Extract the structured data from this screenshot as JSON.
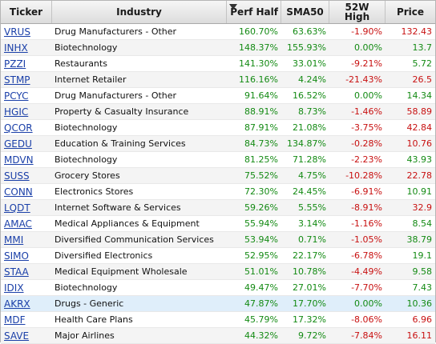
{
  "columns": {
    "ticker": "Ticker",
    "industry": "Industry",
    "perf_half": "Perf Half",
    "sma50": "SMA50",
    "high_line1": "52W",
    "high_line2": "High",
    "price": "Price"
  },
  "sort": {
    "column": "perf_half",
    "direction": "descending",
    "icon": "sort-descending-triangle"
  },
  "colors": {
    "positive": "#138a13",
    "negative": "#c81010",
    "link": "#1a3fa8",
    "highlight_row": "#dfeefa"
  },
  "highlighted_ticker": "AKRX",
  "rows": [
    {
      "ticker": "VRUS",
      "industry": "Drug Manufacturers - Other",
      "perf_half": "160.70%",
      "sma50": "63.63%",
      "high": "-1.90%",
      "price": "132.43",
      "price_dir": "neg"
    },
    {
      "ticker": "INHX",
      "industry": "Biotechnology",
      "perf_half": "148.37%",
      "sma50": "155.93%",
      "high": "0.00%",
      "price": "13.7",
      "price_dir": "pos"
    },
    {
      "ticker": "PZZI",
      "industry": "Restaurants",
      "perf_half": "141.30%",
      "sma50": "33.01%",
      "high": "-9.21%",
      "price": "5.72",
      "price_dir": "pos"
    },
    {
      "ticker": "STMP",
      "industry": "Internet Retailer",
      "perf_half": "116.16%",
      "sma50": "4.24%",
      "high": "-21.43%",
      "price": "26.5",
      "price_dir": "neg"
    },
    {
      "ticker": "PCYC",
      "industry": "Drug Manufacturers - Other",
      "perf_half": "91.64%",
      "sma50": "16.52%",
      "high": "0.00%",
      "price": "14.34",
      "price_dir": "pos"
    },
    {
      "ticker": "HGIC",
      "industry": "Property & Casualty Insurance",
      "perf_half": "88.91%",
      "sma50": "8.73%",
      "high": "-1.46%",
      "price": "58.89",
      "price_dir": "neg"
    },
    {
      "ticker": "QCOR",
      "industry": "Biotechnology",
      "perf_half": "87.91%",
      "sma50": "21.08%",
      "high": "-3.75%",
      "price": "42.84",
      "price_dir": "neg"
    },
    {
      "ticker": "GEDU",
      "industry": "Education & Training Services",
      "perf_half": "84.73%",
      "sma50": "134.87%",
      "high": "-0.28%",
      "price": "10.76",
      "price_dir": "neg"
    },
    {
      "ticker": "MDVN",
      "industry": "Biotechnology",
      "perf_half": "81.25%",
      "sma50": "71.28%",
      "high": "-2.23%",
      "price": "43.93",
      "price_dir": "pos"
    },
    {
      "ticker": "SUSS",
      "industry": "Grocery Stores",
      "perf_half": "75.52%",
      "sma50": "4.75%",
      "high": "-10.28%",
      "price": "22.78",
      "price_dir": "neg"
    },
    {
      "ticker": "CONN",
      "industry": "Electronics Stores",
      "perf_half": "72.30%",
      "sma50": "24.45%",
      "high": "-6.91%",
      "price": "10.91",
      "price_dir": "pos"
    },
    {
      "ticker": "LQDT",
      "industry": "Internet Software & Services",
      "perf_half": "59.26%",
      "sma50": "5.55%",
      "high": "-8.91%",
      "price": "32.9",
      "price_dir": "neg"
    },
    {
      "ticker": "AMAC",
      "industry": "Medical Appliances & Equipment",
      "perf_half": "55.94%",
      "sma50": "3.14%",
      "high": "-1.16%",
      "price": "8.54",
      "price_dir": "pos"
    },
    {
      "ticker": "MMI",
      "industry": "Diversified Communication Services",
      "perf_half": "53.94%",
      "sma50": "0.71%",
      "high": "-1.05%",
      "price": "38.79",
      "price_dir": "pos"
    },
    {
      "ticker": "SIMO",
      "industry": "Diversified Electronics",
      "perf_half": "52.95%",
      "sma50": "22.17%",
      "high": "-6.78%",
      "price": "19.1",
      "price_dir": "pos"
    },
    {
      "ticker": "STAA",
      "industry": "Medical Equipment Wholesale",
      "perf_half": "51.01%",
      "sma50": "10.78%",
      "high": "-4.49%",
      "price": "9.58",
      "price_dir": "pos"
    },
    {
      "ticker": "IDIX",
      "industry": "Biotechnology",
      "perf_half": "49.47%",
      "sma50": "27.01%",
      "high": "-7.70%",
      "price": "7.43",
      "price_dir": "pos"
    },
    {
      "ticker": "AKRX",
      "industry": "Drugs - Generic",
      "perf_half": "47.87%",
      "sma50": "17.70%",
      "high": "0.00%",
      "price": "10.36",
      "price_dir": "pos"
    },
    {
      "ticker": "MDF",
      "industry": "Health Care Plans",
      "perf_half": "45.79%",
      "sma50": "17.32%",
      "high": "-8.06%",
      "price": "6.96",
      "price_dir": "neg"
    },
    {
      "ticker": "SAVE",
      "industry": "Major Airlines",
      "perf_half": "44.32%",
      "sma50": "9.72%",
      "high": "-7.84%",
      "price": "16.11",
      "price_dir": "neg"
    }
  ]
}
